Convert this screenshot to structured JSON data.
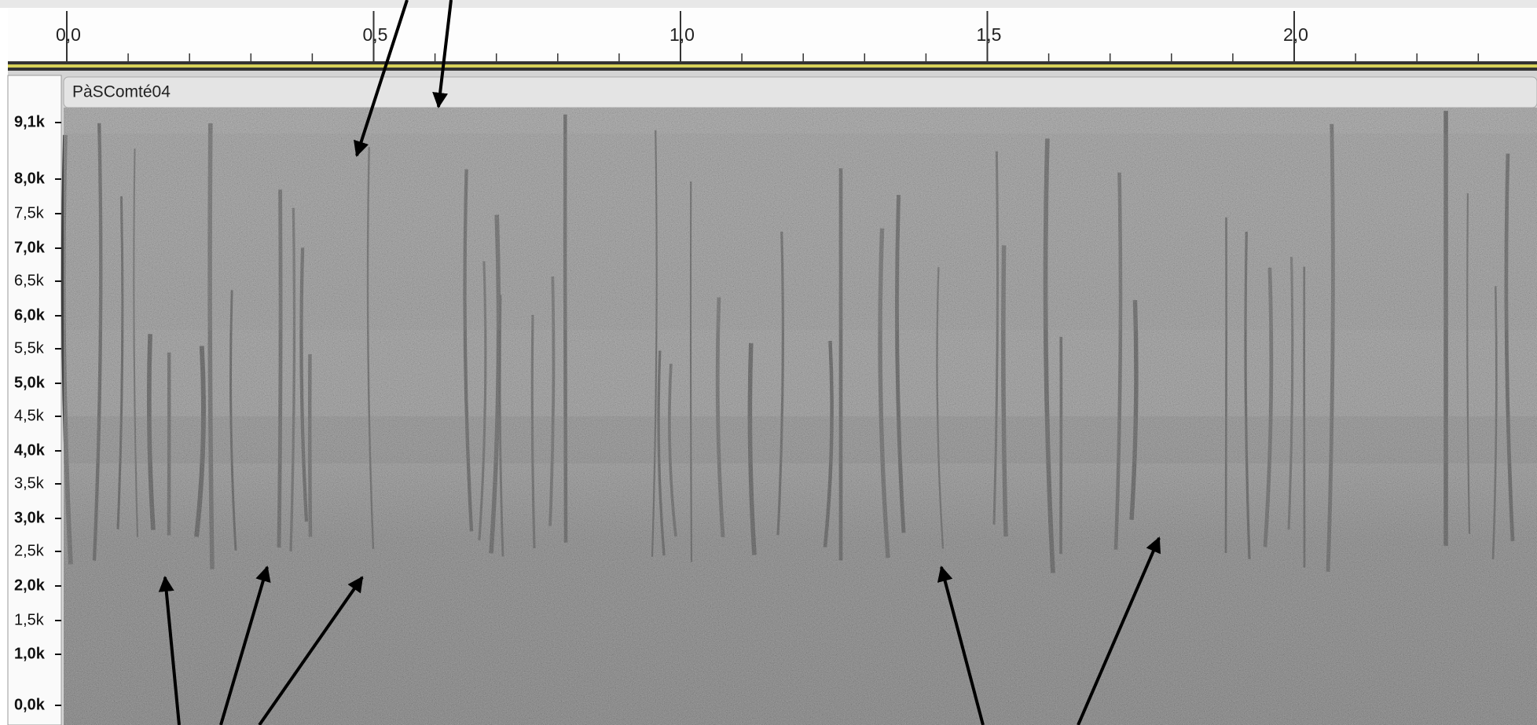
{
  "ruler": {
    "labels": [
      "0,0",
      "0,5",
      "1,0",
      "1,5",
      "2,0"
    ]
  },
  "track": {
    "name": "PàSComté04"
  },
  "frequency_axis": {
    "labels": [
      "9,1k",
      "8,0k",
      "7,5k",
      "7,0k",
      "6,5k",
      "6,0k",
      "5,5k",
      "5,0k",
      "4,5k",
      "4,0k",
      "3,5k",
      "3,0k",
      "2,5k",
      "2,0k",
      "1,5k",
      "1,0k",
      "0,0k"
    ]
  }
}
